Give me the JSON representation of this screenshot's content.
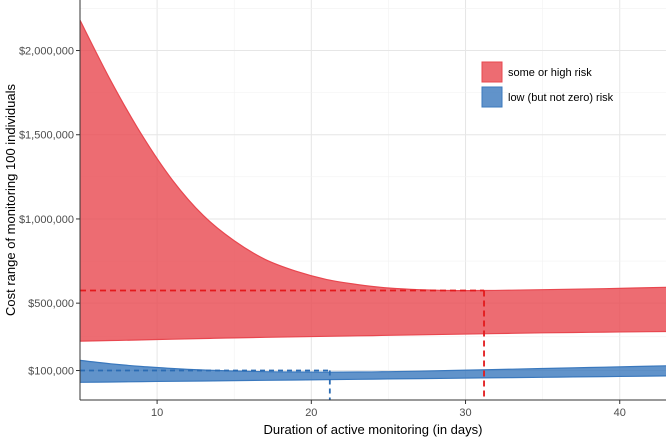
{
  "chart_data": {
    "type": "area",
    "title": "",
    "xlabel": "Duration of active monitoring (in days)",
    "ylabel": "Cost range of monitoring 100 individuals",
    "xlim": [
      5,
      43
    ],
    "ylim": [
      -75000,
      2300000
    ],
    "x_ticks": [
      10,
      20,
      30,
      40
    ],
    "x_tick_labels": [
      "10",
      "20",
      "30",
      "40"
    ],
    "y_ticks": [
      100000,
      500000,
      1000000,
      1500000,
      2000000
    ],
    "y_tick_labels": [
      "$100,000",
      "$500,000",
      "$1,000,000",
      "$1,500,000",
      "$2,000,000"
    ],
    "grid": true,
    "legend_position": "top-right",
    "series": [
      {
        "name": "some or high risk",
        "color": "#e8474f",
        "x": [
          5,
          7,
          9,
          11,
          13,
          15,
          17,
          19,
          21,
          23,
          25,
          27,
          29,
          31,
          33,
          35,
          37,
          39,
          41,
          43
        ],
        "upper": [
          2180000,
          1820000,
          1500000,
          1230000,
          1020000,
          870000,
          760000,
          690000,
          640000,
          610000,
          590000,
          580000,
          575000,
          575000,
          577000,
          580000,
          583000,
          586000,
          590000,
          594000
        ],
        "lower": [
          275000,
          278000,
          282000,
          286000,
          290000,
          294000,
          297000,
          300000,
          303000,
          306000,
          309000,
          312000,
          315000,
          318000,
          321000,
          324000,
          326000,
          328000,
          330000,
          332000
        ],
        "marker": {
          "x": 31.2,
          "y": 575000
        }
      },
      {
        "name": "low (but not zero) risk",
        "color": "#3a78bd",
        "x": [
          5,
          7,
          9,
          11,
          13,
          15,
          17,
          19,
          21,
          23,
          25,
          27,
          29,
          31,
          33,
          35,
          37,
          39,
          41,
          43
        ],
        "upper": [
          160000,
          140000,
          124000,
          112000,
          103000,
          97000,
          93000,
          91000,
          90000,
          91000,
          93000,
          96000,
          100000,
          104000,
          108000,
          112000,
          116000,
          120000,
          124000,
          128000
        ],
        "lower": [
          30000,
          32000,
          34000,
          36000,
          38000,
          40000,
          42000,
          44000,
          46000,
          48000,
          50000,
          52000,
          54000,
          56000,
          58000,
          60000,
          62000,
          64000,
          66000,
          68000
        ],
        "marker": {
          "x": 21.2,
          "y": 100000
        }
      }
    ]
  }
}
